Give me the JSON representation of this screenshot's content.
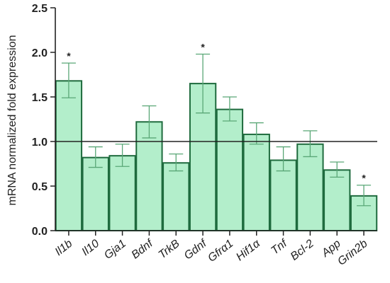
{
  "chart_data": {
    "type": "bar",
    "ylabel": "mRNA normalized fold expression",
    "xlabel": "",
    "ylim": [
      0,
      2.5
    ],
    "yticks": [
      "0.0",
      "0.5",
      "1.0",
      "1.5",
      "2.0",
      "2.5"
    ],
    "reference_line": 1.0,
    "categories": [
      "Il1b",
      "Il10",
      "Gja1",
      "Bdnf",
      "TrkB",
      "Gdnf",
      "Gfrα1",
      "Hif1α",
      "Tnf",
      "Bcl-2",
      "App",
      "Grin2b"
    ],
    "values": [
      1.68,
      0.82,
      0.84,
      1.22,
      0.76,
      1.65,
      1.36,
      1.08,
      0.79,
      0.97,
      0.68,
      0.39
    ],
    "error_upper": [
      1.88,
      0.94,
      0.97,
      1.4,
      0.86,
      1.98,
      1.5,
      1.21,
      0.94,
      1.12,
      0.77,
      0.51
    ],
    "error_lower": [
      1.49,
      0.71,
      0.72,
      1.04,
      0.67,
      1.32,
      1.23,
      0.97,
      0.67,
      0.83,
      0.6,
      0.28
    ],
    "significance": [
      "*",
      "",
      "",
      "",
      "",
      "*",
      "",
      "",
      "",
      "",
      "",
      "*"
    ],
    "colors": {
      "bar_fill": "#b3eecb",
      "bar_stroke": "#1f6b3e",
      "error_bar": "#5aa777",
      "axis": "#222222"
    }
  }
}
